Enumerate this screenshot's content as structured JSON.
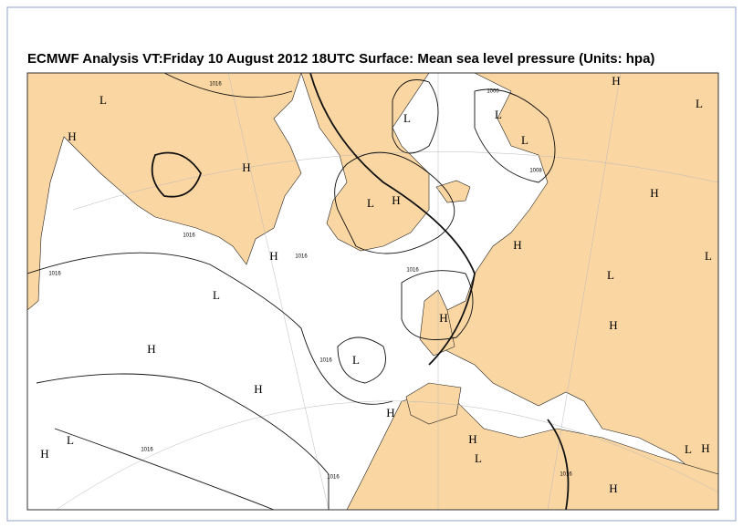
{
  "title": "ECMWF  Analysis VT:Friday 10 August 2012 18UTC Surface: Mean sea level pressure (Units: hpa)",
  "isobar_labels": [
    "1016",
    "1016",
    "1016",
    "1016",
    "1016",
    "1016",
    "1016",
    "1000",
    "1008",
    "1016",
    "1016"
  ],
  "centers": [
    "L",
    "H",
    "H",
    "L",
    "L",
    "L",
    "H",
    "L",
    "H",
    "L",
    "H",
    "H",
    "H",
    "L",
    "L",
    "L",
    "H",
    "H",
    "H",
    "L",
    "H",
    "H",
    "L",
    "H",
    "H",
    "L",
    "H",
    "L",
    "H"
  ]
}
